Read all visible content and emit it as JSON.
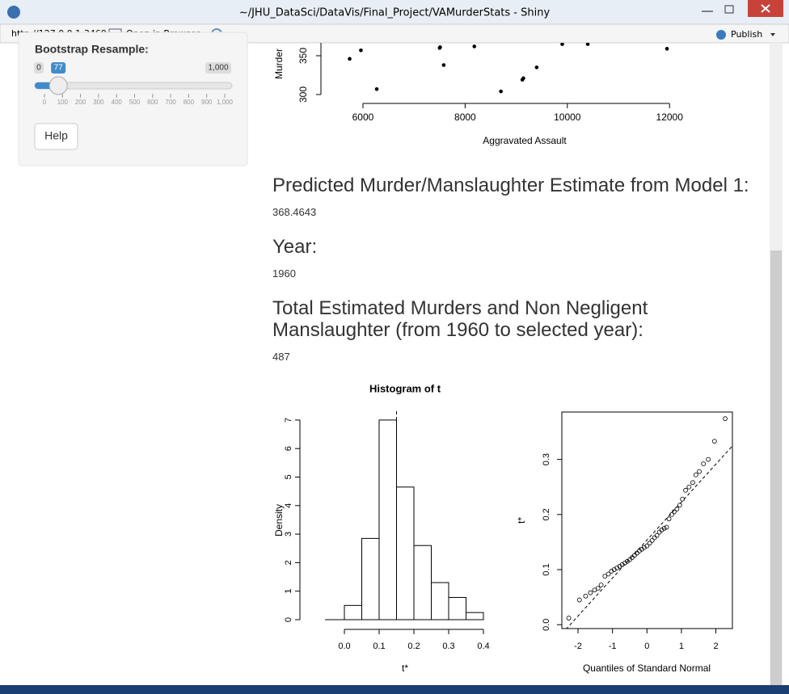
{
  "window": {
    "title": "~/JHU_DataSci/DataVis/Final_Project/VAMurderStats - Shiny"
  },
  "toolbar": {
    "url": "http://127.0.0.1:3469",
    "open_in_browser": "Open in Browser",
    "publish": "Publish"
  },
  "sidebar": {
    "slider_label": "Bootstrap Resample:",
    "slider": {
      "min": 0,
      "max": {
        "value": 1000,
        "label": "1,000"
      },
      "value": 77,
      "ticks": [
        0,
        100,
        200,
        300,
        400,
        500,
        600,
        700,
        800,
        900,
        {
          "value": 1000,
          "label": "1,000"
        }
      ]
    },
    "help_button": "Help"
  },
  "scatter": {
    "ylabel": "Murder",
    "xlabel": "Aggravated Assault",
    "x": [
      5740,
      5960,
      6270,
      7500,
      7510,
      7580,
      8180,
      8700,
      9120,
      9140,
      9400,
      9900,
      10400,
      11950
    ],
    "values": [
      346,
      357,
      307,
      360,
      361,
      338,
      362,
      304,
      319,
      321,
      335,
      365,
      365,
      359
    ],
    "xlim": [
      5200,
      12400
    ],
    "ylim": [
      300,
      370
    ],
    "xticks": [
      6000,
      8000,
      10000,
      12000
    ],
    "yticks": [
      300,
      350
    ]
  },
  "outputs": [
    {
      "heading": "Predicted Murder/Manslaughter Estimate from Model 1:",
      "value": 368.4643
    },
    {
      "heading": "Year:",
      "value": 1960
    },
    {
      "heading": "Total Estimated Murders and Non Negligent Manslaughter (from 1960 to selected year):",
      "value": 487
    }
  ],
  "histogram": {
    "title": "Histogram of t",
    "xlabel": "t*",
    "ylabel": "Density",
    "bins": [
      0,
      0.05,
      0.1,
      0.15,
      0.2,
      0.25,
      0.3,
      0.35,
      0.4
    ],
    "values": [
      0.5,
      2.85,
      7.0,
      4.65,
      2.6,
      1.3,
      0.78,
      0.25
    ],
    "t0": 0.15,
    "xlim": [
      -0.055,
      0.4
    ],
    "ylim": [
      0,
      7.3
    ],
    "xticks": [
      {
        "value": 0,
        "label": "0.0"
      },
      0.1,
      0.2,
      0.3,
      0.4
    ],
    "yticks": [
      0,
      1,
      2,
      3,
      4,
      5,
      6,
      7
    ]
  },
  "qqplot": {
    "xlabel": "Quantiles of Standard Normal",
    "ylabel": "t*",
    "x": [
      -2.27,
      -1.96,
      -1.78,
      -1.64,
      -1.52,
      -1.42,
      -1.33,
      -1.22,
      -1.12,
      -1.03,
      -0.95,
      -0.87,
      -0.79,
      -0.72,
      -0.64,
      -0.57,
      -0.5,
      -0.43,
      -0.36,
      -0.29,
      -0.22,
      -0.15,
      -0.08,
      0,
      0.08,
      0.15,
      0.22,
      0.29,
      0.36,
      0.43,
      0.5,
      0.57,
      0.64,
      0.72,
      0.79,
      0.87,
      0.95,
      1.03,
      1.12,
      1.22,
      1.33,
      1.42,
      1.52,
      1.64,
      1.78,
      1.96,
      2.27
    ],
    "values": [
      0.012,
      0.045,
      0.052,
      0.058,
      0.063,
      0.066,
      0.072,
      0.088,
      0.092,
      0.097,
      0.1,
      0.103,
      0.106,
      0.109,
      0.112,
      0.115,
      0.118,
      0.122,
      0.126,
      0.13,
      0.134,
      0.137,
      0.14,
      0.143,
      0.148,
      0.153,
      0.158,
      0.162,
      0.168,
      0.172,
      0.175,
      0.177,
      0.192,
      0.2,
      0.205,
      0.21,
      0.217,
      0.228,
      0.244,
      0.25,
      0.258,
      0.272,
      0.278,
      0.292,
      0.3,
      0.333,
      0.374
    ],
    "xlim": [
      -2.47,
      2.48
    ],
    "ylim": [
      -0.007,
      0.386
    ],
    "xticks": [
      -2,
      -1,
      0,
      1,
      2
    ],
    "yticks": [
      {
        "value": 0,
        "label": "0.0"
      },
      0.1,
      0.2,
      0.3
    ]
  }
}
